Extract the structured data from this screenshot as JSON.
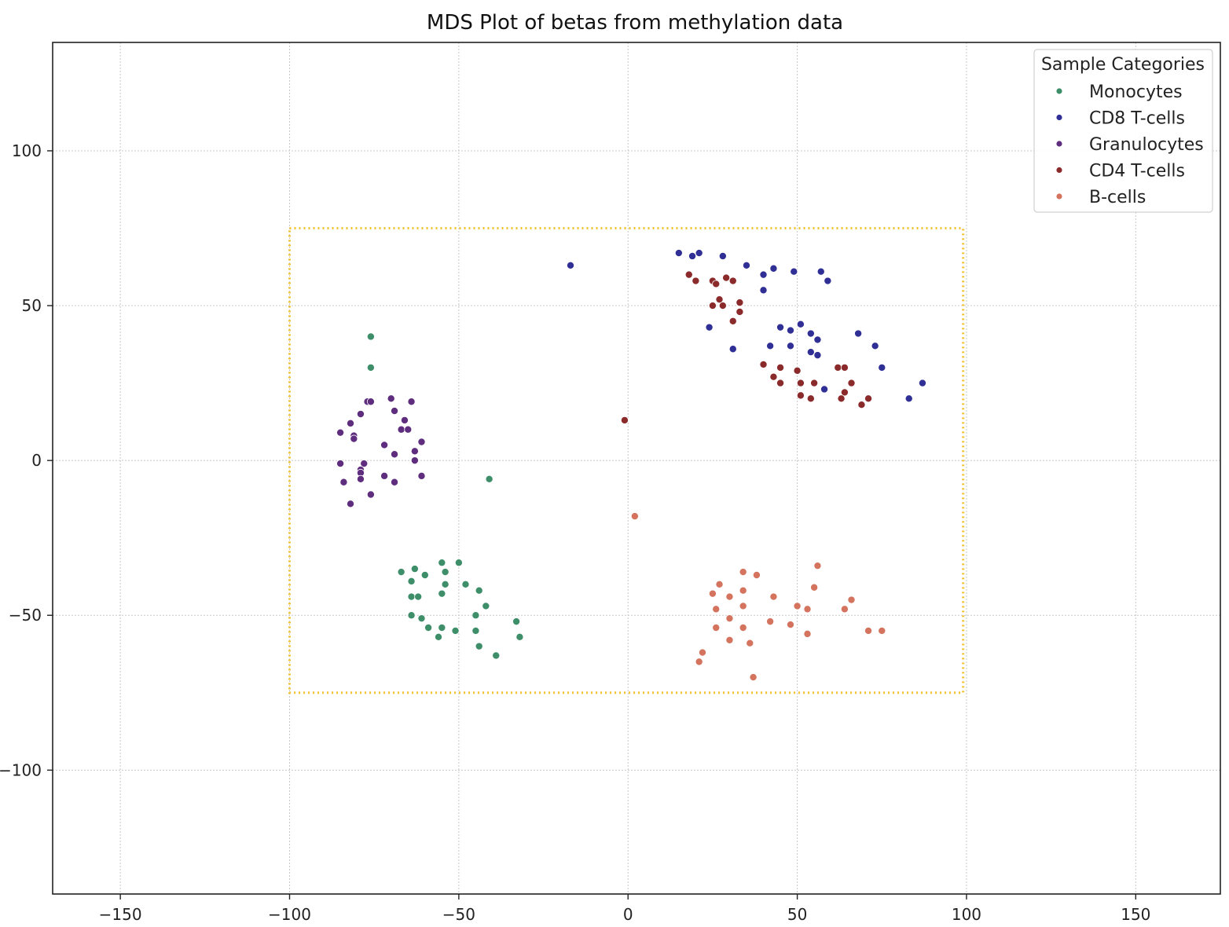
{
  "chart_data": {
    "type": "scatter",
    "title": "MDS Plot of betas from methylation data",
    "xlabel": "",
    "ylabel": "",
    "xlim": [
      -170,
      175
    ],
    "ylim": [
      -140,
      135
    ],
    "xticks": [
      -150,
      -100,
      -50,
      0,
      50,
      100,
      150
    ],
    "yticks": [
      -100,
      -50,
      0,
      50,
      100
    ],
    "xtick_labels": [
      "−150",
      "−100",
      "−50",
      "0",
      "50",
      "100",
      "150"
    ],
    "ytick_labels": [
      "−100",
      "−50",
      "0",
      "50",
      "100"
    ],
    "grid": true,
    "legend": {
      "title": "Sample Categories",
      "placement": "top-right"
    },
    "highlight_box": {
      "x": [
        -100,
        99
      ],
      "y": [
        -75,
        75
      ],
      "color": "#f2c12e",
      "style": "dotted"
    },
    "series": [
      {
        "name": "Monocytes",
        "color": "#3e8e6a",
        "points": [
          [
            -76,
            40
          ],
          [
            -76,
            30
          ],
          [
            -41,
            -6
          ],
          [
            -67,
            -36
          ],
          [
            -64,
            -39
          ],
          [
            -63,
            -35
          ],
          [
            -60,
            -37
          ],
          [
            -55,
            -33
          ],
          [
            -54,
            -36
          ],
          [
            -50,
            -33
          ],
          [
            -48,
            -40
          ],
          [
            -64,
            -44
          ],
          [
            -62,
            -44
          ],
          [
            -55,
            -43
          ],
          [
            -54,
            -40
          ],
          [
            -44,
            -42
          ],
          [
            -42,
            -47
          ],
          [
            -64,
            -50
          ],
          [
            -61,
            -51
          ],
          [
            -59,
            -54
          ],
          [
            -55,
            -54
          ],
          [
            -56,
            -57
          ],
          [
            -51,
            -55
          ],
          [
            -45,
            -50
          ],
          [
            -45,
            -55
          ],
          [
            -44,
            -60
          ],
          [
            -33,
            -52
          ],
          [
            -32,
            -57
          ],
          [
            -39,
            -63
          ]
        ]
      },
      {
        "name": "CD8 T-cells",
        "color": "#2f2f96",
        "points": [
          [
            -17,
            63
          ],
          [
            15,
            67
          ],
          [
            19,
            66
          ],
          [
            21,
            67
          ],
          [
            28,
            66
          ],
          [
            35,
            63
          ],
          [
            40,
            60
          ],
          [
            43,
            62
          ],
          [
            49,
            61
          ],
          [
            57,
            61
          ],
          [
            59,
            58
          ],
          [
            40,
            55
          ],
          [
            24,
            43
          ],
          [
            31,
            36
          ],
          [
            42,
            37
          ],
          [
            45,
            43
          ],
          [
            48,
            42
          ],
          [
            51,
            44
          ],
          [
            54,
            41
          ],
          [
            56,
            39
          ],
          [
            48,
            37
          ],
          [
            54,
            35
          ],
          [
            56,
            34
          ],
          [
            58,
            23
          ],
          [
            68,
            41
          ],
          [
            73,
            37
          ],
          [
            75,
            30
          ],
          [
            83,
            20
          ],
          [
            87,
            25
          ]
        ]
      },
      {
        "name": "Granulocytes",
        "color": "#5e2d7e",
        "points": [
          [
            -85,
            9
          ],
          [
            -82,
            12
          ],
          [
            -81,
            8
          ],
          [
            -81,
            7
          ],
          [
            -79,
            15
          ],
          [
            -77,
            19
          ],
          [
            -76,
            19
          ],
          [
            -70,
            20
          ],
          [
            -69,
            16
          ],
          [
            -67,
            10
          ],
          [
            -66,
            13
          ],
          [
            -65,
            10
          ],
          [
            -64,
            19
          ],
          [
            -72,
            5
          ],
          [
            -69,
            2
          ],
          [
            -63,
            3
          ],
          [
            -61,
            6
          ],
          [
            -63,
            0
          ],
          [
            -85,
            -1
          ],
          [
            -78,
            -1
          ],
          [
            -79,
            -3
          ],
          [
            -79,
            -4
          ],
          [
            -79,
            -6
          ],
          [
            -84,
            -7
          ],
          [
            -76,
            -11
          ],
          [
            -82,
            -14
          ],
          [
            -72,
            -5
          ],
          [
            -69,
            -7
          ],
          [
            -61,
            -5
          ]
        ]
      },
      {
        "name": "CD4 T-cells",
        "color": "#8b2a2a",
        "points": [
          [
            -1,
            13
          ],
          [
            18,
            60
          ],
          [
            20,
            58
          ],
          [
            25,
            58
          ],
          [
            26,
            57
          ],
          [
            29,
            59
          ],
          [
            31,
            58
          ],
          [
            27,
            52
          ],
          [
            25,
            50
          ],
          [
            28,
            50
          ],
          [
            33,
            51
          ],
          [
            33,
            48
          ],
          [
            31,
            45
          ],
          [
            40,
            31
          ],
          [
            43,
            27
          ],
          [
            45,
            30
          ],
          [
            45,
            25
          ],
          [
            50,
            29
          ],
          [
            51,
            25
          ],
          [
            51,
            21
          ],
          [
            55,
            25
          ],
          [
            54,
            20
          ],
          [
            62,
            30
          ],
          [
            64,
            30
          ],
          [
            64,
            22
          ],
          [
            63,
            20
          ],
          [
            66,
            25
          ],
          [
            69,
            18
          ],
          [
            71,
            20
          ]
        ]
      },
      {
        "name": "B-cells",
        "color": "#d4735e",
        "points": [
          [
            2,
            -18
          ],
          [
            25,
            -43
          ],
          [
            27,
            -40
          ],
          [
            26,
            -48
          ],
          [
            30,
            -44
          ],
          [
            34,
            -36
          ],
          [
            34,
            -42
          ],
          [
            38,
            -37
          ],
          [
            30,
            -51
          ],
          [
            34,
            -47
          ],
          [
            26,
            -54
          ],
          [
            30,
            -58
          ],
          [
            34,
            -54
          ],
          [
            36,
            -59
          ],
          [
            22,
            -62
          ],
          [
            21,
            -65
          ],
          [
            37,
            -70
          ],
          [
            43,
            -44
          ],
          [
            42,
            -52
          ],
          [
            48,
            -53
          ],
          [
            50,
            -47
          ],
          [
            53,
            -48
          ],
          [
            53,
            -56
          ],
          [
            55,
            -41
          ],
          [
            56,
            -34
          ],
          [
            64,
            -48
          ],
          [
            66,
            -45
          ],
          [
            71,
            -55
          ],
          [
            75,
            -55
          ]
        ]
      }
    ]
  }
}
